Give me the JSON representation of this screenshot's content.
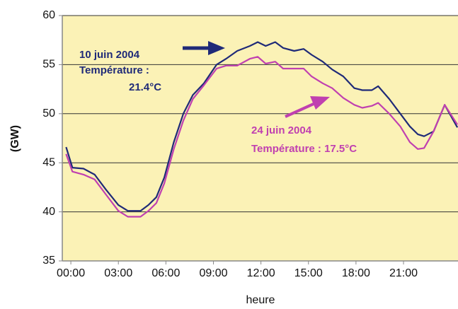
{
  "chart_data": {
    "type": "line",
    "xlabel": "heure",
    "ylabel": "(GW)",
    "annotations": [
      "10 juin 2004",
      "Température :",
      "21.4°C",
      "24 juin 2004",
      "Température :  17.5°C"
    ],
    "x": [
      -0.3,
      0.1,
      0.8,
      1.5,
      2.2,
      3.0,
      3.6,
      4.4,
      4.9,
      5.4,
      5.9,
      6.5,
      7.1,
      7.7,
      8.4,
      9.2,
      9.8,
      10.5,
      11.3,
      11.8,
      12.3,
      12.9,
      13.4,
      14.1,
      14.7,
      15.2,
      15.9,
      16.5,
      17.2,
      17.9,
      18.4,
      19.0,
      19.4,
      20.1,
      20.8,
      21.4,
      21.9,
      22.3,
      22.9,
      23.6,
      24.4
    ],
    "series": [
      {
        "name": "10 juin 2004",
        "color": "#1f2a78",
        "values": [
          46.6,
          44.5,
          44.4,
          43.8,
          42.3,
          40.7,
          40.1,
          40.1,
          40.7,
          41.5,
          43.5,
          47.1,
          50,
          51.9,
          53.1,
          55,
          55.6,
          56.4,
          56.9,
          57.3,
          56.9,
          57.3,
          56.7,
          56.4,
          56.6,
          56,
          55.3,
          54.5,
          53.8,
          52.6,
          52.4,
          52.4,
          52.8,
          51.5,
          50,
          48.7,
          47.9,
          47.7,
          48.2,
          50.9,
          48.6
        ]
      },
      {
        "name": "24 juin 2004",
        "color": "#c040b0",
        "values": [
          45.9,
          44.1,
          43.8,
          43.3,
          41.8,
          40.1,
          39.5,
          39.5,
          40.1,
          40.9,
          42.9,
          46.4,
          49.3,
          51.5,
          52.9,
          54.6,
          54.9,
          54.9,
          55.6,
          55.8,
          55.1,
          55.3,
          54.6,
          54.6,
          54.6,
          53.8,
          53.1,
          52.6,
          51.6,
          50.9,
          50.6,
          50.8,
          51.1,
          50,
          48.7,
          47.1,
          46.4,
          46.5,
          48.2,
          50.9,
          48.9
        ]
      }
    ],
    "xlim": [
      -0.54,
      24.44
    ],
    "xticks": [
      {
        "value": 0,
        "label": "00:00"
      },
      {
        "value": 3,
        "label": "03:00"
      },
      {
        "value": 6,
        "label": "06:00"
      },
      {
        "value": 9,
        "label": "09:00"
      },
      {
        "value": 12,
        "label": "12:00"
      },
      {
        "value": 15,
        "label": "15:00"
      },
      {
        "value": 18,
        "label": "18:00"
      },
      {
        "value": 21,
        "label": "21:00"
      }
    ],
    "ylim": [
      35,
      60
    ],
    "yticks": [
      35,
      40,
      45,
      50,
      55,
      60
    ],
    "grid": true,
    "background": "#fbf2b6"
  }
}
